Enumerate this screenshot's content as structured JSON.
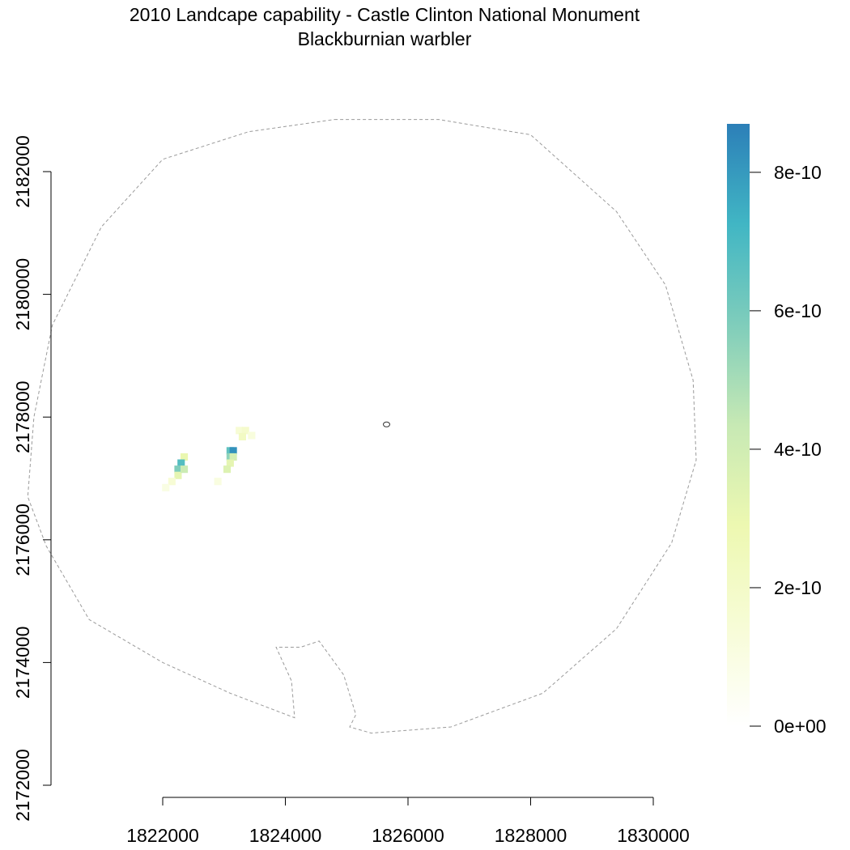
{
  "title": "2010 Landcape capability - Castle Clinton National Monument",
  "subtitle": "Blackburnian warbler",
  "chart_data": {
    "type": "heatmap",
    "title": "2010 Landcape capability - Castle Clinton National Monument",
    "subtitle": "Blackburnian warbler",
    "x_ticks": [
      1822000,
      1824000,
      1826000,
      1828000,
      1830000
    ],
    "y_ticks": [
      2172000,
      2174000,
      2176000,
      2178000,
      2180000,
      2182000
    ],
    "x_tick_labels": [
      "1822000",
      "1824000",
      "1826000",
      "1828000",
      "1830000"
    ],
    "y_tick_labels": [
      "2172000",
      "2174000",
      "2176000",
      "2178000",
      "2180000",
      "2182000"
    ],
    "xlim": [
      1822000,
      1830000
    ],
    "ylim": [
      2172000,
      2182000
    ],
    "legend": {
      "placement": "right",
      "range": [
        0,
        8.7e-10
      ],
      "ticks": [
        0,
        2e-10,
        4e-10,
        6e-10,
        8e-10
      ],
      "tick_labels": [
        "0e+00",
        "2e-10",
        "4e-10",
        "6e-10",
        "8e-10"
      ],
      "colors": [
        "#ffffff",
        "#f7fcd6",
        "#edf8b1",
        "#c7e9b4",
        "#7fcdbb",
        "#41b6c4",
        "#2c7fb8"
      ]
    },
    "boundary": [
      [
        1824800,
        2182850
      ],
      [
        1826500,
        2182850
      ],
      [
        1828000,
        2182600
      ],
      [
        1829400,
        2181350
      ],
      [
        1830200,
        2180150
      ],
      [
        1830650,
        2178600
      ],
      [
        1830700,
        2177300
      ],
      [
        1830300,
        2175950
      ],
      [
        1829400,
        2174550
      ],
      [
        1828200,
        2173500
      ],
      [
        1826700,
        2172950
      ],
      [
        1825400,
        2172850
      ],
      [
        1825050,
        2172950
      ],
      [
        1825150,
        2173150
      ],
      [
        1824950,
        2173800
      ],
      [
        1824550,
        2174350
      ],
      [
        1824250,
        2174250
      ],
      [
        1823850,
        2174250
      ],
      [
        1824100,
        2173700
      ],
      [
        1824150,
        2173100
      ],
      [
        1823100,
        2173500
      ],
      [
        1822000,
        2174000
      ],
      [
        1820800,
        2174700
      ],
      [
        1820100,
        2175900
      ],
      [
        1819800,
        2176700
      ],
      [
        1819900,
        2178000
      ],
      [
        1820200,
        2179500
      ],
      [
        1821000,
        2181100
      ],
      [
        1822000,
        2182200
      ],
      [
        1823400,
        2182650
      ]
    ],
    "monument_point": [
      1825650,
      2177880
    ],
    "cells": [
      [
        1823250,
        2177780,
        1.5e-10
      ],
      [
        1823350,
        2177780,
        1.8e-10
      ],
      [
        1823300,
        2177680,
        2.2e-10
      ],
      [
        1823450,
        2177700,
        1.2e-10
      ],
      [
        1823100,
        2177450,
        6.5e-10
      ],
      [
        1823150,
        2177450,
        8.2e-10
      ],
      [
        1823100,
        2177350,
        5.5e-10
      ],
      [
        1823150,
        2177350,
        3.8e-10
      ],
      [
        1823100,
        2177250,
        3.2e-10
      ],
      [
        1823050,
        2177150,
        3.5e-10
      ],
      [
        1822350,
        2177350,
        3e-10
      ],
      [
        1822300,
        2177250,
        6.8e-10
      ],
      [
        1822250,
        2177150,
        5.8e-10
      ],
      [
        1822250,
        2177050,
        3.2e-10
      ],
      [
        1822150,
        2176950,
        1.5e-10
      ],
      [
        1822050,
        2176850,
        1e-10
      ],
      [
        1822900,
        2176950,
        1.1e-10
      ],
      [
        1822350,
        2177150,
        4.2e-10
      ]
    ]
  }
}
